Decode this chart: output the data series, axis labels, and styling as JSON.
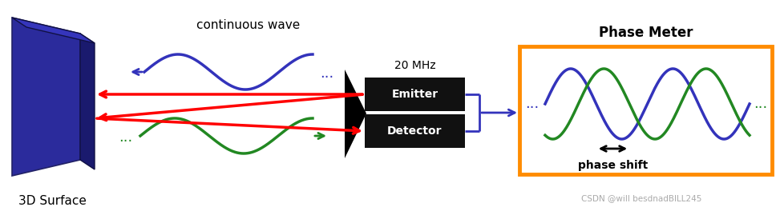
{
  "bg_color": "#ffffff",
  "surface_color": "#2b2b9c",
  "surface_dark": "#1a1a6e",
  "surface_top": "#3535bb",
  "emitter_box_color": "#111111",
  "phase_box_color": "#ff8c00",
  "phase_box_fill": "#ffffff",
  "wave_blue": "#3333bb",
  "wave_green": "#228822",
  "arrow_red": "#ff0000",
  "arrow_blue": "#3333bb",
  "text_color": "#000000",
  "continuous_wave_text": "continuous wave",
  "freq_text": "20 MHz",
  "emitter_text": "Emitter",
  "detector_text": "Detector",
  "phase_meter_title": "Phase Meter",
  "phase_shift_text": "phase shift",
  "surface_label": "3D Surface",
  "watermark": "CSDN @will besdnadBILL245",
  "fig_width": 9.73,
  "fig_height": 2.59,
  "dpi": 100
}
